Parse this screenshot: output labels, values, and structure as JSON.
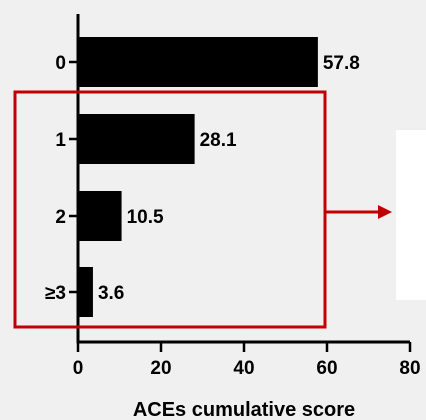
{
  "chart_data": {
    "type": "bar",
    "orientation": "horizontal",
    "categories": [
      "0",
      "1",
      "2",
      "≥3"
    ],
    "values": [
      57.8,
      28.1,
      10.5,
      3.6
    ],
    "data_labels": [
      "57.8",
      "28.1",
      "10.5",
      "3.6"
    ],
    "title": "",
    "xlabel": "ACEs cumulative score",
    "ylabel": "",
    "xlim": [
      0,
      80
    ],
    "x_ticks": [
      "0",
      "20",
      "40",
      "60",
      "80"
    ],
    "grid": false,
    "bar_color": "#000000",
    "highlight_box_color": "#c00000",
    "highlighted_categories": [
      "1",
      "2",
      "≥3"
    ]
  },
  "annotation_arrow_color": "#c00000"
}
